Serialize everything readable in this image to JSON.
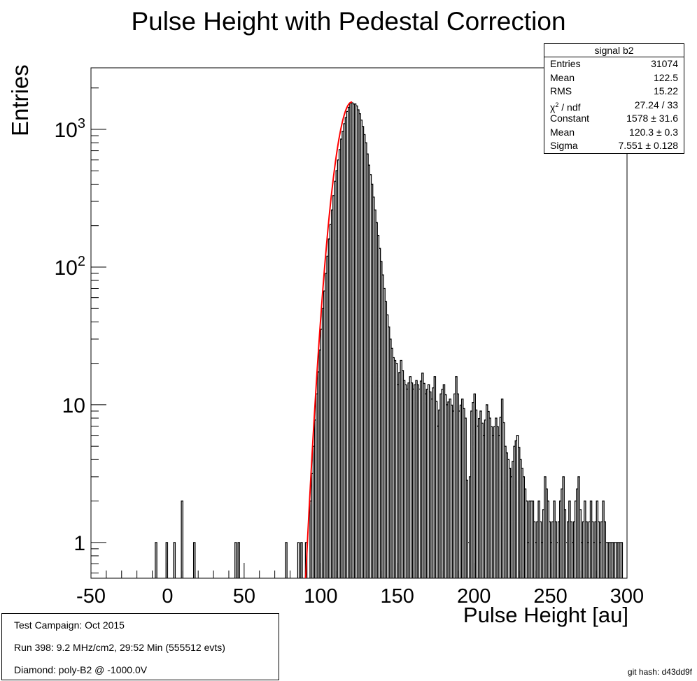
{
  "chart_data": {
    "type": "histogram",
    "title": "Pulse Height with Pedestal Correction",
    "xlabel": "Pulse Height [au]",
    "ylabel": "Entries",
    "xlim": [
      -50,
      300
    ],
    "ylim": [
      0.55,
      2800
    ],
    "yscale": "log",
    "grid": false,
    "legend": "none",
    "x_ticks": [
      "-50",
      "0",
      "50",
      "100",
      "150",
      "200",
      "250",
      "300"
    ],
    "y_ticks": [
      {
        "value": 1,
        "label": "1"
      },
      {
        "value": 10,
        "label": "10"
      },
      {
        "value": 100,
        "label": "10",
        "sup": "2"
      },
      {
        "value": 1000,
        "label": "10",
        "sup": "3"
      }
    ],
    "bin_width": 1,
    "histogram_points": [
      [
        -8,
        1
      ],
      [
        -1,
        1
      ],
      [
        4,
        1
      ],
      [
        9,
        2
      ],
      [
        17,
        1
      ],
      [
        44,
        1
      ],
      [
        46,
        1
      ],
      [
        77,
        1
      ],
      [
        85,
        1
      ],
      [
        87,
        1
      ],
      [
        90,
        1
      ],
      [
        93,
        2
      ],
      [
        95,
        5
      ],
      [
        97,
        12
      ],
      [
        99,
        25
      ],
      [
        101,
        50
      ],
      [
        103,
        90
      ],
      [
        105,
        160
      ],
      [
        107,
        260
      ],
      [
        109,
        420
      ],
      [
        111,
        600
      ],
      [
        113,
        850
      ],
      [
        115,
        1100
      ],
      [
        117,
        1350
      ],
      [
        119,
        1550
      ],
      [
        120,
        1560
      ],
      [
        121,
        1530
      ],
      [
        122,
        1530
      ],
      [
        123,
        1480
      ],
      [
        125,
        1300
      ],
      [
        127,
        1050
      ],
      [
        129,
        800
      ],
      [
        131,
        550
      ],
      [
        133,
        400
      ],
      [
        135,
        260
      ],
      [
        137,
        170
      ],
      [
        139,
        110
      ],
      [
        141,
        70
      ],
      [
        143,
        45
      ],
      [
        145,
        30
      ],
      [
        147,
        22
      ],
      [
        149,
        20
      ],
      [
        150,
        14
      ],
      [
        152,
        21
      ],
      [
        154,
        15
      ],
      [
        156,
        13
      ],
      [
        158,
        16
      ],
      [
        160,
        13
      ],
      [
        162,
        15
      ],
      [
        164,
        13
      ],
      [
        166,
        17
      ],
      [
        168,
        12
      ],
      [
        170,
        14
      ],
      [
        172,
        11
      ],
      [
        174,
        16
      ],
      [
        176,
        7
      ],
      [
        178,
        12
      ],
      [
        180,
        14
      ],
      [
        182,
        10
      ],
      [
        184,
        11
      ],
      [
        186,
        9
      ],
      [
        188,
        16
      ],
      [
        190,
        9
      ],
      [
        192,
        11
      ],
      [
        194,
        8
      ],
      [
        196,
        1
      ],
      [
        198,
        9
      ],
      [
        200,
        12
      ],
      [
        202,
        7
      ],
      [
        204,
        9
      ],
      [
        206,
        6
      ],
      [
        208,
        10
      ],
      [
        210,
        8
      ],
      [
        212,
        6
      ],
      [
        214,
        8
      ],
      [
        216,
        6
      ],
      [
        218,
        11
      ],
      [
        220,
        5
      ],
      [
        222,
        4
      ],
      [
        224,
        3
      ],
      [
        226,
        5
      ],
      [
        228,
        6
      ],
      [
        230,
        4
      ],
      [
        232,
        3
      ],
      [
        234,
        2
      ],
      [
        235,
        1
      ],
      [
        236,
        2
      ],
      [
        238,
        2
      ],
      [
        240,
        1
      ],
      [
        242,
        2
      ],
      [
        244,
        1
      ],
      [
        246,
        3
      ],
      [
        248,
        2
      ],
      [
        250,
        1
      ],
      [
        252,
        2
      ],
      [
        254,
        1
      ],
      [
        256,
        2
      ],
      [
        258,
        3
      ],
      [
        260,
        1
      ],
      [
        262,
        2
      ],
      [
        264,
        1
      ],
      [
        266,
        2
      ],
      [
        268,
        3
      ],
      [
        270,
        1
      ],
      [
        272,
        2
      ],
      [
        274,
        1
      ],
      [
        276,
        2
      ],
      [
        278,
        1
      ],
      [
        280,
        2
      ],
      [
        282,
        1
      ],
      [
        284,
        2
      ],
      [
        286,
        1
      ],
      [
        288,
        1
      ],
      [
        290,
        1
      ],
      [
        292,
        1
      ],
      [
        294,
        1
      ],
      [
        296,
        1
      ]
    ],
    "fit": {
      "function": "gaus",
      "constant": 1578,
      "mean": 120.3,
      "sigma": 7.551,
      "range": [
        90,
        120.5
      ],
      "color": "#ff0000"
    },
    "histogram_color": "#000000"
  },
  "stats_box": {
    "title": "signal b2",
    "rows": [
      {
        "label": "Entries",
        "value": "31074"
      },
      {
        "label": "Mean",
        "value": "122.5"
      },
      {
        "label": "RMS",
        "value": "15.22"
      },
      {
        "label_sym": "χ",
        "label_sup": "2",
        "label_tail": " / ndf",
        "value": "27.24 / 33"
      },
      {
        "label": "Constant",
        "value": "1578 ± 31.6"
      },
      {
        "label": "Mean",
        "value": "120.3 ± 0.3"
      },
      {
        "label": "Sigma",
        "value": "7.551 ± 0.128"
      }
    ]
  },
  "info_box": {
    "line1": "Test Campaign: Oct 2015",
    "line2": "Run 398: 9.2 MHz/cm2, 29:52 Min (555512 evts)",
    "line3": "Diamond: poly-B2 @ -1000.0V"
  },
  "git_hash": "git hash: d43dd9f"
}
